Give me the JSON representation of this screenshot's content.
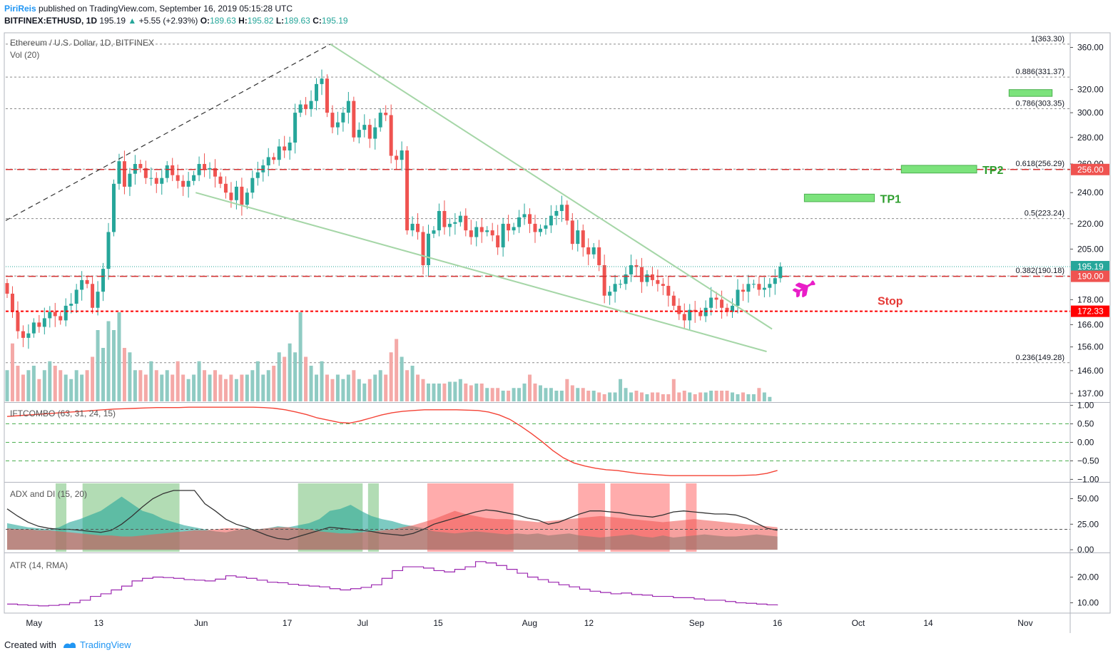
{
  "header": {
    "author": "PiriReis",
    "published": "published on TradingView.com, September 16, 2019 05:15:28 UTC",
    "symbol": "BITFINEX:ETHUSD, 1D",
    "last": "195.19",
    "change": "+5.55 (+2.93%)",
    "o_label": "O:",
    "o": "189.63",
    "h_label": "H:",
    "h": "195.82",
    "l_label": "L:",
    "l": "189.63",
    "c_label": "C:",
    "c": "195.19"
  },
  "footer": {
    "created_with": "Created with",
    "brand": "TradingView"
  },
  "colors": {
    "up": "#26a69a",
    "down": "#ef5350",
    "up_light": "#8fcbc3",
    "down_light": "#f4a9a7",
    "trend": "#a5d6a7",
    "tp": "#7ce37c",
    "tp_text": "#2e9e2e",
    "stop": "#ff0000",
    "pink": "#e91ec8",
    "atr": "#9c27b0",
    "ift": "#f44336"
  },
  "chart_data": [
    {
      "type": "candlestick",
      "title": "Ethereum / U.S. Dollar, 1D, BITFINEX",
      "volume_label": "Vol (20)",
      "x_ticks": [
        "May",
        "13",
        "Jun",
        "17",
        "Jul",
        "15",
        "Aug",
        "12",
        "Sep",
        "16",
        "Oct",
        "14",
        "Nov"
      ],
      "y_scale": "log",
      "y_ticks": [
        "360.00",
        "320.00",
        "300.00",
        "280.00",
        "260.00",
        "240.00",
        "220.00",
        "205.00",
        "178.00",
        "166.00",
        "156.00",
        "146.00",
        "137.00"
      ],
      "ylim": [
        134,
        375
      ],
      "price_tags": [
        {
          "value": 256.0,
          "text": "256.00",
          "color": "#ef5350"
        },
        {
          "value": 195.19,
          "text": "195.19",
          "color": "#26a69a"
        },
        {
          "value": 190.0,
          "text": "190.00",
          "color": "#ef5350"
        },
        {
          "value": 172.33,
          "text": "172.33",
          "color": "#ff0000"
        }
      ],
      "fib_levels": [
        {
          "value": 363.3,
          "text": "1(363.30)"
        },
        {
          "value": 331.37,
          "text": "0.886(331.37)"
        },
        {
          "value": 303.35,
          "text": "0.786(303.35)"
        },
        {
          "value": 256.29,
          "text": "0.618(256.29)"
        },
        {
          "value": 223.24,
          "text": "0.5(223.24)"
        },
        {
          "value": 190.18,
          "text": "0.382(190.18)"
        },
        {
          "value": 149.28,
          "text": "0.236(149.28)"
        }
      ],
      "targets": [
        {
          "label": "TP1",
          "low": 234,
          "high": 239,
          "from": "2019-09-21",
          "to": "2019-10-04"
        },
        {
          "label": "TP2",
          "low": 253.5,
          "high": 259,
          "from": "2019-10-09",
          "to": "2019-10-23"
        },
        {
          "label": "",
          "low": 314,
          "high": 320,
          "from": "2019-10-29",
          "to": "2019-11-06"
        }
      ],
      "stop_label": "Stop",
      "anchors": [
        {
          "date": "2019-04-26",
          "x": 0
        },
        {
          "date": "2019-06-24",
          "x": 59
        },
        {
          "date": "2019-09-16",
          "x": 143
        }
      ],
      "closes": [
        181,
        172,
        163,
        160,
        162,
        167,
        165,
        169,
        172,
        170,
        168,
        175,
        176,
        183,
        188,
        186,
        174,
        182,
        194,
        215,
        246,
        262,
        244,
        253,
        260,
        257,
        250,
        250,
        246,
        250,
        259,
        252,
        248,
        244,
        248,
        252,
        260,
        256,
        257,
        251,
        246,
        240,
        235,
        244,
        232,
        240,
        250,
        254,
        259,
        265,
        263,
        273,
        270,
        276,
        300,
        307,
        303,
        310,
        325,
        330,
        300,
        288,
        292,
        300,
        310,
        280,
        286,
        290,
        279,
        288,
        300,
        298,
        266,
        263,
        270,
        216,
        220,
        215,
        196,
        214,
        216,
        228,
        218,
        220,
        221,
        225,
        216,
        212,
        218,
        215,
        216,
        213,
        206,
        220,
        216,
        218,
        224,
        226,
        220,
        215,
        217,
        219,
        225,
        228,
        232,
        222,
        208,
        216,
        206,
        202,
        206,
        196,
        180,
        182,
        186,
        186,
        191,
        196,
        195,
        187,
        191,
        188,
        186,
        185,
        180,
        175,
        171,
        168,
        173,
        172,
        170,
        174,
        179,
        178,
        174,
        172,
        175,
        183,
        182,
        186,
        186,
        183,
        184,
        186,
        189,
        195.19
      ],
      "volume_relative": [
        0.35,
        0.65,
        0.4,
        0.3,
        0.35,
        0.4,
        0.25,
        0.35,
        0.45,
        0.4,
        0.35,
        0.3,
        0.25,
        0.35,
        0.3,
        0.35,
        0.5,
        0.8,
        0.6,
        0.9,
        0.8,
        1.0,
        0.6,
        0.55,
        0.35,
        0.35,
        0.3,
        0.45,
        0.35,
        0.3,
        0.35,
        0.3,
        0.45,
        0.3,
        0.25,
        0.3,
        0.45,
        0.35,
        0.3,
        0.35,
        0.3,
        0.25,
        0.3,
        0.25,
        0.3,
        0.3,
        0.35,
        0.45,
        0.3,
        0.35,
        0.4,
        0.55,
        0.5,
        0.65,
        0.55,
        1.0,
        0.5,
        0.4,
        0.3,
        0.45,
        0.3,
        0.25,
        0.3,
        0.25,
        0.3,
        0.35,
        0.25,
        0.2,
        0.25,
        0.3,
        0.35,
        0.3,
        0.55,
        0.7,
        0.5,
        0.35,
        0.4,
        0.3,
        0.25,
        0.2,
        0.2,
        0.2,
        0.2,
        0.22,
        0.22,
        0.25,
        0.2,
        0.18,
        0.2,
        0.2,
        0.15,
        0.15,
        0.15,
        0.12,
        0.12,
        0.15,
        0.15,
        0.2,
        0.3,
        0.2,
        0.18,
        0.15,
        0.15,
        0.12,
        0.12,
        0.25,
        0.18,
        0.15,
        0.15,
        0.12,
        0.12,
        0.1,
        0.08,
        0.1,
        0.1,
        0.25,
        0.15,
        0.1,
        0.12,
        0.1,
        0.08,
        0.1,
        0.1,
        0.08,
        0.08,
        0.25,
        0.1,
        0.12,
        0.1,
        0.08,
        0.1,
        0.1,
        0.12,
        0.12,
        0.12,
        0.12,
        0.1,
        0.08,
        0.1,
        0.08,
        0.08,
        0.15,
        0.1,
        0.05
      ]
    },
    {
      "type": "line",
      "title": "IFTCOMBO (63, 31, 24, 15)",
      "y_ticks": [
        "1.00",
        "0.50",
        "0.00",
        "−0.50",
        "−1.00"
      ],
      "ylim": [
        -1.05,
        1.05
      ],
      "guides": [
        0.5,
        0,
        -0.5
      ],
      "values": [
        0.7,
        0.72,
        0.74,
        0.76,
        0.78,
        0.8,
        0.82,
        0.84,
        0.86,
        0.88,
        0.9,
        0.91,
        0.92,
        0.93,
        0.94,
        0.94,
        0.94,
        0.95,
        0.95,
        0.95,
        0.95,
        0.95,
        0.95,
        0.95,
        0.94,
        0.92,
        0.88,
        0.82,
        0.75,
        0.66,
        0.6,
        0.54,
        0.52,
        0.58,
        0.66,
        0.74,
        0.8,
        0.84,
        0.86,
        0.88,
        0.88,
        0.88,
        0.88,
        0.87,
        0.86,
        0.82,
        0.74,
        0.62,
        0.44,
        0.24,
        0.02,
        -0.22,
        -0.42,
        -0.56,
        -0.64,
        -0.7,
        -0.74,
        -0.76,
        -0.8,
        -0.84,
        -0.86,
        -0.88,
        -0.9,
        -0.9,
        -0.9,
        -0.9,
        -0.9,
        -0.9,
        -0.9,
        -0.89,
        -0.88,
        -0.84,
        -0.76
      ]
    },
    {
      "type": "area",
      "title": "ADX and DI (15, 20)",
      "y_ticks": [
        "50.00",
        "25.00",
        "0.00"
      ],
      "ylim": [
        -2,
        65
      ],
      "guide": 20,
      "adx": [
        40,
        33,
        27,
        23,
        21,
        20,
        20,
        19,
        18,
        17,
        19,
        25,
        33,
        42,
        50,
        55,
        58,
        58,
        58,
        45,
        38,
        30,
        25,
        22,
        18,
        14,
        11,
        10,
        13,
        16,
        19,
        22,
        21,
        20,
        19,
        18,
        16,
        15,
        14,
        16,
        20,
        25,
        28,
        31,
        34,
        37,
        39,
        38,
        36,
        34,
        31,
        29,
        25,
        27,
        31,
        35,
        38,
        38,
        37,
        36,
        34,
        33,
        32,
        34,
        37,
        38,
        37,
        36,
        35,
        35,
        34,
        31,
        26,
        21,
        19
      ],
      "plus_di": [
        26,
        24,
        22,
        21,
        20,
        22,
        27,
        30,
        34,
        38,
        45,
        52,
        45,
        38,
        35,
        30,
        27,
        24,
        22,
        20,
        18,
        17,
        19,
        21,
        20,
        21,
        23,
        22,
        24,
        26,
        30,
        38,
        40,
        44,
        38,
        33,
        30,
        28,
        25,
        23,
        21,
        18,
        17,
        16,
        17,
        18,
        17,
        16,
        15,
        16,
        15,
        16,
        14,
        15,
        16,
        14,
        13,
        12,
        13,
        14,
        15,
        13,
        12,
        14,
        12,
        13,
        14,
        15,
        14,
        13,
        13,
        14,
        15,
        14,
        13
      ],
      "minus_di": [
        21,
        20,
        20,
        19,
        19,
        18,
        17,
        16,
        15,
        14,
        14,
        13,
        13,
        14,
        15,
        16,
        17,
        18,
        19,
        19,
        20,
        21,
        21,
        20,
        20,
        21,
        22,
        22,
        21,
        20,
        18,
        17,
        16,
        16,
        17,
        18,
        19,
        20,
        22,
        24,
        27,
        30,
        34,
        38,
        35,
        33,
        31,
        30,
        30,
        29,
        28,
        27,
        28,
        29,
        30,
        31,
        32,
        33,
        32,
        31,
        30,
        29,
        28,
        27,
        28,
        29,
        30,
        29,
        28,
        27,
        26,
        25,
        24,
        23,
        22
      ],
      "shaded_green": [
        [
          "2019-05-05",
          "2019-05-07"
        ],
        [
          "2019-05-10",
          "2019-05-28"
        ],
        [
          "2019-06-19",
          "2019-07-01"
        ],
        [
          "2019-07-02",
          "2019-07-04"
        ]
      ],
      "shaded_red": [
        [
          "2019-07-13",
          "2019-07-29"
        ],
        [
          "2019-08-10",
          "2019-08-15"
        ],
        [
          "2019-08-16",
          "2019-08-27"
        ],
        [
          "2019-08-30",
          "2019-09-01"
        ]
      ]
    },
    {
      "type": "line",
      "title": "ATR (14, RMA)",
      "y_ticks": [
        "20.00",
        "10.00"
      ],
      "ylim": [
        6,
        29
      ],
      "values": [
        9.5,
        9.2,
        9,
        8.8,
        9,
        9.3,
        10,
        11,
        12.5,
        13.5,
        15,
        16.5,
        18.5,
        19.5,
        20,
        19.8,
        19.5,
        19,
        18.8,
        18.5,
        19.2,
        20.5,
        20,
        19.5,
        18.8,
        18,
        17.8,
        17.2,
        16.8,
        16.5,
        16.2,
        15.5,
        15,
        15.5,
        16,
        17,
        19.5,
        22.5,
        24,
        24,
        23.5,
        22.5,
        22,
        23,
        24,
        26,
        25.5,
        24.5,
        23,
        21.5,
        20,
        19,
        18,
        17,
        16.2,
        15.3,
        14.5,
        14,
        13.5,
        13.8,
        13.2,
        13,
        12.5,
        12.5,
        12,
        12,
        11.5,
        11,
        11,
        10.5,
        10,
        9.8,
        9.5,
        9.2,
        9
      ]
    }
  ]
}
